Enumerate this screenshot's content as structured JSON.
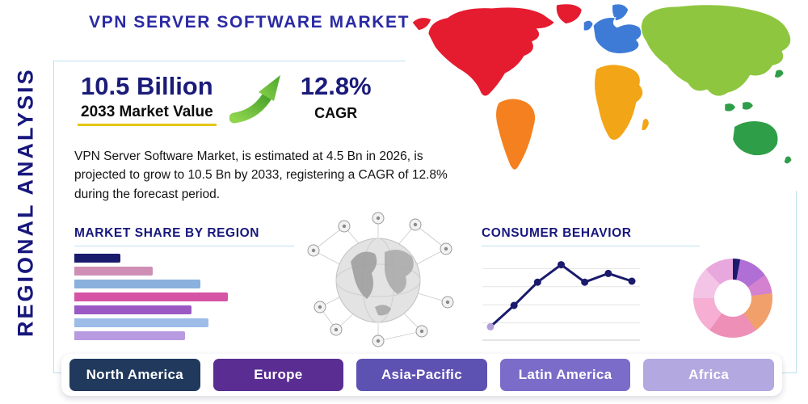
{
  "header": {
    "title": "VPN SERVER SOFTWARE MARKET",
    "side_label": "REGIONAL ANALYSIS"
  },
  "stats": {
    "market_value": "10.5 Billion",
    "market_value_caption": "2033 Market Value",
    "cagr_value": "12.8%",
    "cagr_caption": "CAGR",
    "description": "VPN Server Software Market, is estimated at 4.5 Bn in 2026, is projected to grow to 10.5 Bn by 2033, registering a CAGR of 12.8% during the forecast period."
  },
  "sections": {
    "market_share_title": "MARKET SHARE BY REGION",
    "consumer_behavior_title": "CONSUMER BEHAVIOR"
  },
  "regions": [
    {
      "label": "North America",
      "color": "#20395c"
    },
    {
      "label": "Europe",
      "color": "#5a2d92"
    },
    {
      "label": "Asia-Pacific",
      "color": "#5d52b2"
    },
    {
      "label": "Latin America",
      "color": "#7a6cc8"
    },
    {
      "label": "Africa",
      "color": "#b3a8e0"
    }
  ],
  "colors": {
    "accent_navy": "#1b1b7a",
    "title_navy": "#2a2aa5",
    "frame_line": "#bfe0ef",
    "arrow_green": "#6cbf3a",
    "underline_gold": "#e6c619"
  },
  "chart_data": [
    {
      "type": "bar",
      "orientation": "horizontal",
      "title": "MARKET SHARE BY REGION",
      "values": [
        29,
        49,
        79,
        96,
        73,
        84,
        69
      ],
      "xmax": 100,
      "colors": [
        "#1b1b6e",
        "#cf8fb5",
        "#8ab0dd",
        "#d554a5",
        "#9b59c4",
        "#9dbce8",
        "#b79ae0"
      ],
      "grid": false,
      "axis_labels_visible": false
    },
    {
      "type": "line",
      "title": "CONSUMER BEHAVIOR",
      "x": [
        1,
        2,
        3,
        4,
        5,
        6,
        7
      ],
      "values": [
        0.8,
        3.0,
        5.4,
        7.2,
        5.4,
        6.3,
        5.5
      ],
      "ylim": [
        0,
        8
      ],
      "line_color": "#1b1b6e",
      "first_marker_color": "#b39ddb",
      "grid": true,
      "axis_labels_visible": false
    },
    {
      "type": "pie",
      "variant": "donut",
      "title": "Regional share donut",
      "slices": [
        {
          "value": 3,
          "color": "#1b1b6e"
        },
        {
          "value": 12,
          "color": "#b06fd4"
        },
        {
          "value": 8,
          "color": "#d481cf"
        },
        {
          "value": 17,
          "color": "#f2a06b"
        },
        {
          "value": 20,
          "color": "#ee8fb8"
        },
        {
          "value": 15,
          "color": "#f6aed2"
        },
        {
          "value": 13,
          "color": "#f3c4e6"
        },
        {
          "value": 12,
          "color": "#e9a8dd"
        }
      ]
    }
  ]
}
